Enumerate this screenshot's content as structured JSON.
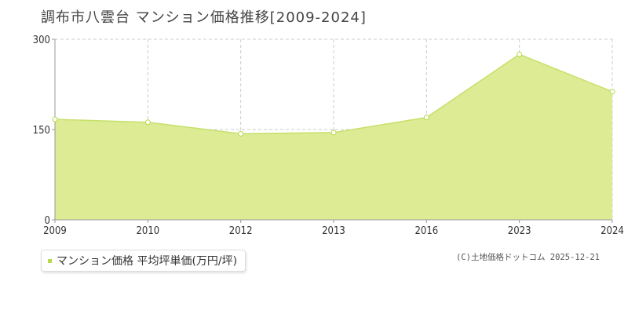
{
  "title": "調布市八雲台 マンション価格推移[2009-2024]",
  "legend_label": "マンション価格 平均坪単価(万円/坪)",
  "credit": "(C)土地価格ドットコム 2025-12-21",
  "colors": {
    "area_fill": "#dceb94",
    "line": "#c6e06a",
    "marker": "#b5d94a",
    "grid": "#cccccc",
    "axis": "#999999",
    "text": "#333333"
  },
  "chart_data": {
    "type": "area",
    "categories": [
      "2009",
      "2010",
      "2012",
      "2013",
      "2016",
      "2023",
      "2024"
    ],
    "series": [
      {
        "name": "マンション価格 平均坪単価(万円/坪)",
        "values": [
          167,
          162,
          143,
          145,
          170,
          275,
          213
        ]
      }
    ],
    "y_ticks": [
      "0",
      "150",
      "300"
    ],
    "ylim": [
      0,
      300
    ],
    "grid": true,
    "legend_position": "bottom-left"
  }
}
